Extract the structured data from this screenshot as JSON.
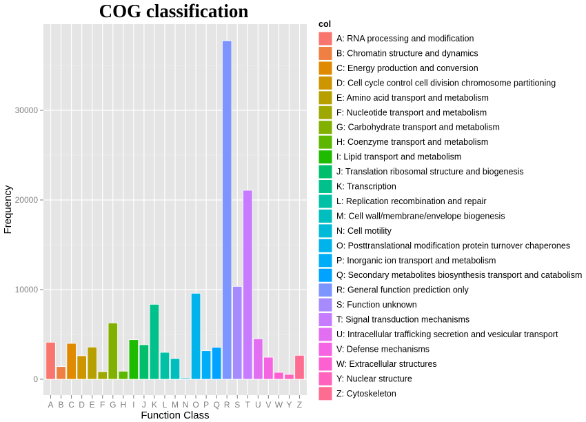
{
  "chart_data": {
    "type": "bar",
    "title": "COG classification",
    "xlabel": "Function Class",
    "ylabel": "Frequency",
    "ylim": [
      -1800,
      40000
    ],
    "yticks": [
      0,
      10000,
      20000,
      30000
    ],
    "grid": true,
    "legend_title": "col",
    "legend_placement": "right",
    "categories": [
      "A",
      "B",
      "C",
      "D",
      "E",
      "F",
      "G",
      "H",
      "I",
      "J",
      "K",
      "L",
      "M",
      "N",
      "O",
      "P",
      "Q",
      "R",
      "S",
      "T",
      "U",
      "V",
      "W",
      "Y",
      "Z"
    ],
    "values": [
      4130,
      1410,
      4000,
      2620,
      3590,
      850,
      6280,
      900,
      4410,
      3850,
      8360,
      3000,
      2310,
      130,
      9590,
      3180,
      3560,
      37770,
      10360,
      21080,
      4510,
      2460,
      770,
      540,
      2670
    ],
    "legend": [
      "A: RNA processing and modification",
      "B: Chromatin structure and dynamics",
      "C: Energy production and conversion",
      "D: Cell cycle control  cell division  chromosome partitioning",
      "E: Amino acid transport and metabolism",
      "F: Nucleotide transport and metabolism",
      "G: Carbohydrate transport and metabolism",
      "H: Coenzyme transport and metabolism",
      "I: Lipid transport and metabolism",
      "J: Translation   ribosomal structure and biogenesis",
      "K: Transcription",
      "L: Replication   recombination and repair",
      "M: Cell wall/membrane/envelope biogenesis",
      "N: Cell motility",
      "O: Posttranslational modification  protein turnover  chaperones",
      "P: Inorganic ion transport and metabolism",
      "Q: Secondary metabolites biosynthesis  transport and catabolism",
      "R: General function prediction only",
      "S: Function unknown",
      "T: Signal transduction mechanisms",
      "U: Intracellular trafficking  secretion  and vesicular transport",
      "V: Defense mechanisms",
      "W: Extracellular structures",
      "Y: Nuclear structure",
      "Z: Cytoskeleton"
    ],
    "colors": [
      "#F8766D",
      "#EE8043",
      "#DF8A00",
      "#CD9500",
      "#B79F00",
      "#9FA800",
      "#82B000",
      "#5DB700",
      "#1EBB00",
      "#00BE6C",
      "#00C08B",
      "#00C1A6",
      "#00BEBE",
      "#00BAD7",
      "#00B4EB",
      "#00ADF7",
      "#00A3FF",
      "#7D96FF",
      "#A68BFF",
      "#C77CFF",
      "#E26FF2",
      "#F564E3",
      "#FD61D1",
      "#FF63BD",
      "#FF6C91"
    ]
  }
}
